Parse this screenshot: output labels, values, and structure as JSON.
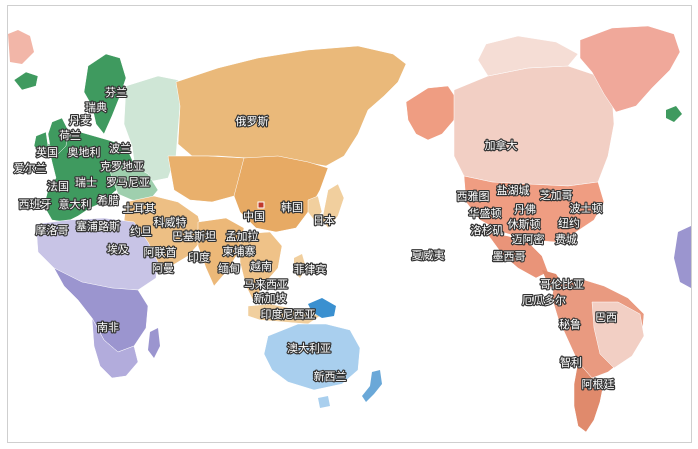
{
  "colors": {
    "europe": "#3f9a5f",
    "europe_light": "#cfe6d6",
    "asia": "#e6b26d",
    "asia_light": "#f1cf9e",
    "africa": "#9b95cf",
    "africa_light": "#c8c4e6",
    "oceania": "#a9cfee",
    "north_america": "#ef9d82",
    "north_america_light": "#f2cfc4",
    "south_america": "#e08a6c",
    "greenland": "#f0a89a"
  },
  "labels": [
    {
      "id": "finland",
      "text": "芬兰"
    },
    {
      "id": "sweden",
      "text": "瑞典"
    },
    {
      "id": "denmark",
      "text": "丹麦"
    },
    {
      "id": "netherlands",
      "text": "荷兰"
    },
    {
      "id": "uk",
      "text": "英国"
    },
    {
      "id": "austria",
      "text": "奥地利"
    },
    {
      "id": "poland",
      "text": "波兰"
    },
    {
      "id": "ireland",
      "text": "爱尔兰"
    },
    {
      "id": "croatia",
      "text": "克罗地亚"
    },
    {
      "id": "switzerland",
      "text": "瑞士"
    },
    {
      "id": "romania",
      "text": "罗马尼亚"
    },
    {
      "id": "france",
      "text": "法国"
    },
    {
      "id": "spain",
      "text": "西班牙"
    },
    {
      "id": "italy",
      "text": "意大利"
    },
    {
      "id": "greece",
      "text": "希腊"
    },
    {
      "id": "turkey",
      "text": "土耳其"
    },
    {
      "id": "morocco",
      "text": "摩洛哥"
    },
    {
      "id": "cyprus",
      "text": "塞浦路斯"
    },
    {
      "id": "jordan",
      "text": "约旦"
    },
    {
      "id": "kuwait",
      "text": "科威特"
    },
    {
      "id": "egypt",
      "text": "埃及"
    },
    {
      "id": "uae",
      "text": "阿联酋"
    },
    {
      "id": "oman",
      "text": "阿曼"
    },
    {
      "id": "pakistan",
      "text": "巴基斯坦"
    },
    {
      "id": "bangladesh",
      "text": "孟加拉"
    },
    {
      "id": "india",
      "text": "印度"
    },
    {
      "id": "cambodia",
      "text": "柬埔寨"
    },
    {
      "id": "myanmar",
      "text": "缅甸"
    },
    {
      "id": "vietnam",
      "text": "越南"
    },
    {
      "id": "philippines",
      "text": "菲律宾"
    },
    {
      "id": "malaysia",
      "text": "马来西亚"
    },
    {
      "id": "singapore",
      "text": "新加坡"
    },
    {
      "id": "indonesia",
      "text": "印度尼西亚"
    },
    {
      "id": "russia",
      "text": "俄罗斯"
    },
    {
      "id": "china",
      "text": "中国"
    },
    {
      "id": "korea",
      "text": "韩国"
    },
    {
      "id": "japan",
      "text": "日本"
    },
    {
      "id": "south_africa",
      "text": "南非"
    },
    {
      "id": "australia",
      "text": "澳大利亚"
    },
    {
      "id": "new_zealand",
      "text": "新西兰"
    },
    {
      "id": "hawaii",
      "text": "夏威夷"
    },
    {
      "id": "canada",
      "text": "加拿大"
    },
    {
      "id": "seattle",
      "text": "西雅图"
    },
    {
      "id": "salt_lake",
      "text": "盐湖城"
    },
    {
      "id": "chicago",
      "text": "芝加哥"
    },
    {
      "id": "washington",
      "text": "华盛顿"
    },
    {
      "id": "denver",
      "text": "丹佛"
    },
    {
      "id": "boston",
      "text": "波士顿"
    },
    {
      "id": "new_york",
      "text": "纽约"
    },
    {
      "id": "los_angeles",
      "text": "洛杉矶"
    },
    {
      "id": "houston",
      "text": "休斯顿"
    },
    {
      "id": "miami",
      "text": "迈阿密"
    },
    {
      "id": "philadelphia",
      "text": "费城"
    },
    {
      "id": "mexico",
      "text": "墨西哥"
    },
    {
      "id": "colombia",
      "text": "哥伦比亚"
    },
    {
      "id": "ecuador",
      "text": "厄瓜多尔"
    },
    {
      "id": "peru",
      "text": "秘鲁"
    },
    {
      "id": "brazil",
      "text": "巴西"
    },
    {
      "id": "chile",
      "text": "智利"
    },
    {
      "id": "argentina",
      "text": "阿根廷"
    }
  ]
}
